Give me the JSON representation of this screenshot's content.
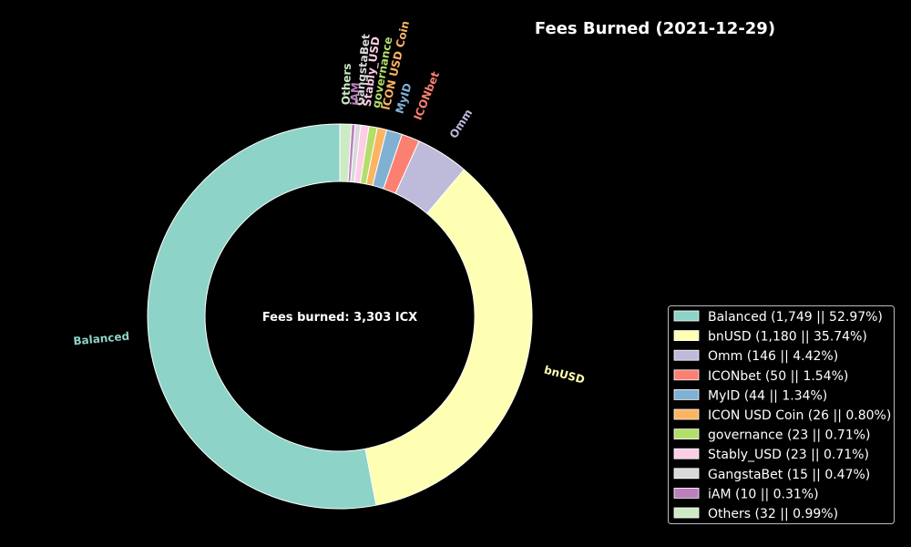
{
  "chart_data": {
    "type": "pie",
    "title": "Fees Burned (2021-12-29)",
    "center_label": "Fees burned: 3,303 ICX",
    "total": 3303,
    "unit": "ICX",
    "legend_position": "lower-right",
    "slices": [
      {
        "label": "Balanced",
        "value": 1749,
        "percent": 52.97,
        "color": "#8dd3c7",
        "legend": "Balanced (1,749 || 52.97%)"
      },
      {
        "label": "bnUSD",
        "value": 1180,
        "percent": 35.74,
        "color": "#ffffb3",
        "legend": "bnUSD (1,180 || 35.74%)"
      },
      {
        "label": "Omm",
        "value": 146,
        "percent": 4.42,
        "color": "#bebada",
        "legend": "Omm (146 || 4.42%)"
      },
      {
        "label": "ICONbet",
        "value": 50,
        "percent": 1.54,
        "color": "#fb8072",
        "legend": "ICONbet (50 || 1.54%)"
      },
      {
        "label": "MyID",
        "value": 44,
        "percent": 1.34,
        "color": "#80b1d3",
        "legend": "MyID (44 || 1.34%)"
      },
      {
        "label": "ICON USD Coin",
        "value": 26,
        "percent": 0.8,
        "color": "#fdb462",
        "legend": "ICON USD Coin (26 || 0.80%)"
      },
      {
        "label": "governance",
        "value": 23,
        "percent": 0.71,
        "color": "#b3de69",
        "legend": "governance (23 || 0.71%)"
      },
      {
        "label": "Stably_USD",
        "value": 23,
        "percent": 0.71,
        "color": "#fccde5",
        "legend": "Stably_USD (23 || 0.71%)"
      },
      {
        "label": "GangstaBet",
        "value": 15,
        "percent": 0.47,
        "color": "#d9d9d9",
        "legend": "GangstaBet (15 || 0.47%)"
      },
      {
        "label": "iAM",
        "value": 10,
        "percent": 0.31,
        "color": "#bc80bd",
        "legend": "iAM  (10 || 0.31%)"
      },
      {
        "label": "Others",
        "value": 32,
        "percent": 0.99,
        "color": "#ccebc5",
        "legend": "Others (32 || 0.99%)"
      }
    ]
  }
}
